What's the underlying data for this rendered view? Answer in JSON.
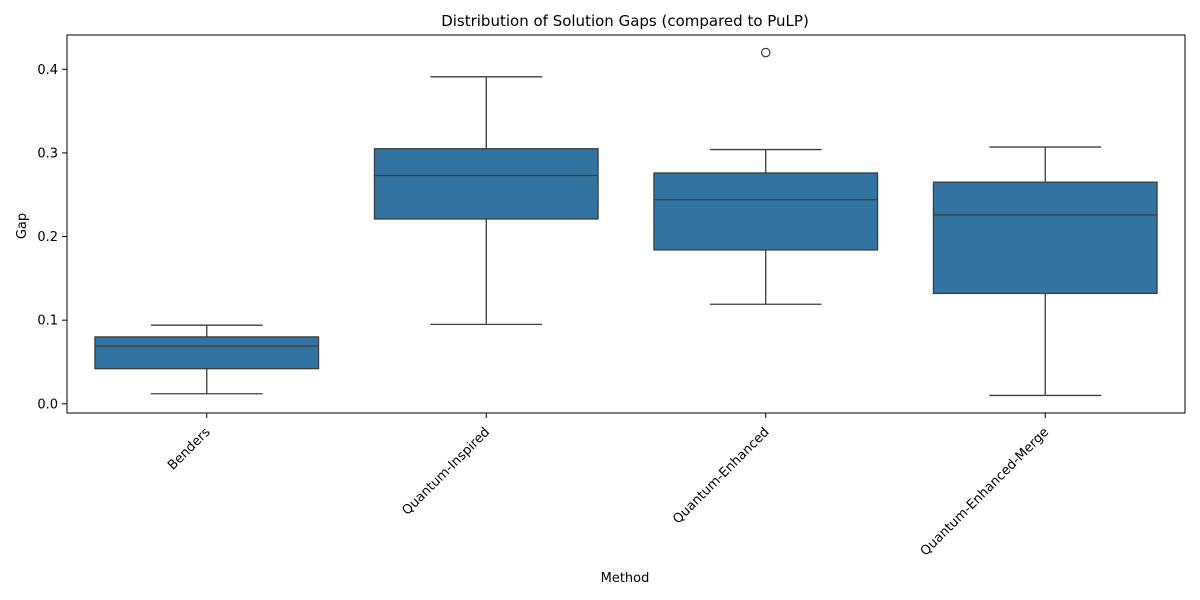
{
  "chart_data": {
    "type": "box",
    "title": "Distribution of Solution Gaps (compared to PuLP)",
    "xlabel": "Method",
    "ylabel": "Gap",
    "categories": [
      "Benders",
      "Quantum-Inspired",
      "Quantum-Enhanced",
      "Quantum-Enhanced-Merge"
    ],
    "boxes": [
      {
        "category": "Benders",
        "whisker_low": 0.012,
        "q1": 0.042,
        "median": 0.069,
        "q3": 0.08,
        "whisker_high": 0.094,
        "outliers": []
      },
      {
        "category": "Quantum-Inspired",
        "whisker_low": 0.095,
        "q1": 0.221,
        "median": 0.273,
        "q3": 0.305,
        "whisker_high": 0.391,
        "outliers": []
      },
      {
        "category": "Quantum-Enhanced",
        "whisker_low": 0.119,
        "q1": 0.184,
        "median": 0.244,
        "q3": 0.276,
        "whisker_high": 0.304,
        "outliers": [
          0.42
        ]
      },
      {
        "category": "Quantum-Enhanced-Merge",
        "whisker_low": 0.01,
        "q1": 0.132,
        "median": 0.226,
        "q3": 0.265,
        "whisker_high": 0.307,
        "outliers": []
      }
    ],
    "yticks": [
      0.0,
      0.1,
      0.2,
      0.3,
      0.4
    ],
    "ytick_labels": [
      "0.0",
      "0.1",
      "0.2",
      "0.3",
      "0.4"
    ],
    "ylim": [
      -0.011,
      0.441
    ],
    "grid": false,
    "legend": false,
    "colors": {
      "box_fill": "#3274a1",
      "line": "#3d3d3d",
      "axis": "#000000"
    }
  }
}
